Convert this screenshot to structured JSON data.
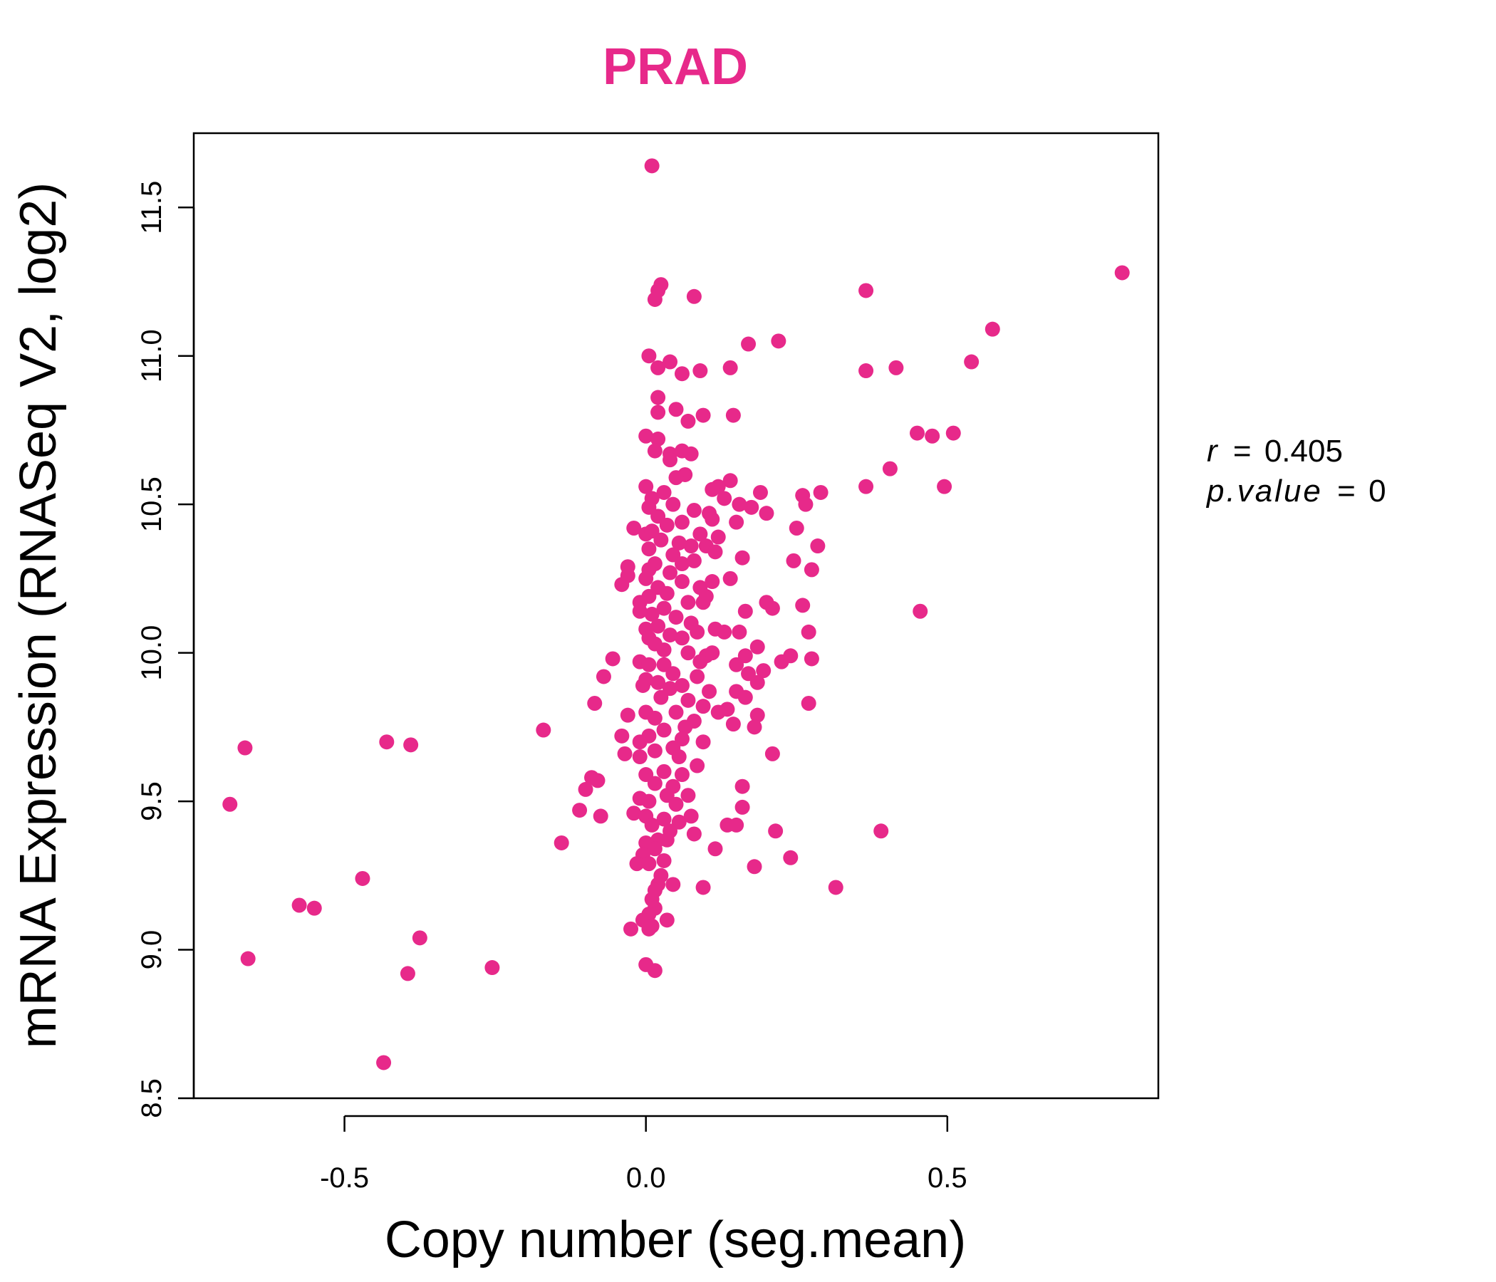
{
  "chart_data": {
    "type": "scatter",
    "title": "PRAD",
    "xlabel": "Copy number (seg.mean)",
    "ylabel": "mRNA Expression (RNASeq V2, log2)",
    "xlim": [
      -0.75,
      0.85
    ],
    "ylim": [
      8.5,
      11.75
    ],
    "x_ticks": [
      -0.5,
      0.0,
      0.5
    ],
    "x_tick_labels": [
      "-0.5",
      "0.0",
      "0.5"
    ],
    "y_ticks": [
      8.5,
      9.0,
      9.5,
      10.0,
      10.5,
      11.0,
      11.5
    ],
    "y_tick_labels": [
      "8.5",
      "9.0",
      "9.5",
      "10.0",
      "10.5",
      "11.0",
      "11.5"
    ],
    "annotation": {
      "r_label": "r",
      "r_value": "0.405",
      "p_label": "p.value",
      "p_value": "0"
    },
    "grid": false,
    "point_color": "#E7298A",
    "points": [
      [
        0.01,
        11.64
      ],
      [
        0.025,
        11.24
      ],
      [
        0.02,
        11.22
      ],
      [
        0.015,
        11.19
      ],
      [
        0.08,
        11.2
      ],
      [
        0.365,
        11.22
      ],
      [
        0.79,
        11.28
      ],
      [
        0.575,
        11.09
      ],
      [
        0.22,
        11.05
      ],
      [
        0.17,
        11.04
      ],
      [
        0.54,
        10.98
      ],
      [
        0.365,
        10.95
      ],
      [
        0.415,
        10.96
      ],
      [
        0.14,
        10.96
      ],
      [
        0.09,
        10.95
      ],
      [
        0.005,
        11.0
      ],
      [
        0.04,
        10.98
      ],
      [
        0.02,
        10.96
      ],
      [
        0.06,
        10.94
      ],
      [
        0.02,
        10.86
      ],
      [
        0.05,
        10.82
      ],
      [
        0.095,
        10.8
      ],
      [
        0.145,
        10.8
      ],
      [
        0.02,
        10.81
      ],
      [
        0.07,
        10.78
      ],
      [
        0.45,
        10.74
      ],
      [
        0.475,
        10.73
      ],
      [
        0.51,
        10.74
      ],
      [
        0.0,
        10.73
      ],
      [
        0.02,
        10.72
      ],
      [
        0.015,
        10.68
      ],
      [
        0.04,
        10.67
      ],
      [
        0.06,
        10.68
      ],
      [
        0.075,
        10.67
      ],
      [
        0.04,
        10.65
      ],
      [
        0.405,
        10.62
      ],
      [
        0.365,
        10.56
      ],
      [
        0.495,
        10.56
      ],
      [
        0.065,
        10.6
      ],
      [
        0.05,
        10.59
      ],
      [
        0.14,
        10.58
      ],
      [
        0.12,
        10.56
      ],
      [
        0.11,
        10.55
      ],
      [
        0.19,
        10.54
      ],
      [
        0.26,
        10.53
      ],
      [
        0.29,
        10.54
      ],
      [
        0.265,
        10.5
      ],
      [
        0.155,
        10.5
      ],
      [
        0.105,
        10.47
      ],
      [
        0.2,
        10.47
      ],
      [
        0.13,
        10.52
      ],
      [
        0.0,
        10.56
      ],
      [
        0.01,
        10.52
      ],
      [
        0.03,
        10.54
      ],
      [
        0.045,
        10.5
      ],
      [
        0.005,
        10.49
      ],
      [
        0.02,
        10.46
      ],
      [
        0.08,
        10.48
      ],
      [
        0.11,
        10.45
      ],
      [
        0.15,
        10.44
      ],
      [
        0.06,
        10.44
      ],
      [
        0.035,
        10.43
      ],
      [
        -0.02,
        10.42
      ],
      [
        0.0,
        10.4
      ],
      [
        0.01,
        10.41
      ],
      [
        0.025,
        10.38
      ],
      [
        0.055,
        10.37
      ],
      [
        0.09,
        10.4
      ],
      [
        0.12,
        10.39
      ],
      [
        0.25,
        10.42
      ],
      [
        0.175,
        10.49
      ],
      [
        0.005,
        10.35
      ],
      [
        0.045,
        10.33
      ],
      [
        0.075,
        10.36
      ],
      [
        0.1,
        10.36
      ],
      [
        0.115,
        10.34
      ],
      [
        0.285,
        10.36
      ],
      [
        0.16,
        10.32
      ],
      [
        0.245,
        10.31
      ],
      [
        0.015,
        10.3
      ],
      [
        0.06,
        10.3
      ],
      [
        0.08,
        10.31
      ],
      [
        -0.03,
        10.29
      ],
      [
        0.005,
        10.28
      ],
      [
        0.04,
        10.27
      ],
      [
        0.275,
        10.28
      ],
      [
        0.14,
        10.25
      ],
      [
        0.11,
        10.24
      ],
      [
        0.09,
        10.22
      ],
      [
        -0.04,
        10.23
      ],
      [
        -0.03,
        10.26
      ],
      [
        0.0,
        10.25
      ],
      [
        0.02,
        10.22
      ],
      [
        0.06,
        10.24
      ],
      [
        0.035,
        10.2
      ],
      [
        0.005,
        10.19
      ],
      [
        0.1,
        10.19
      ],
      [
        0.07,
        10.17
      ],
      [
        0.03,
        10.15
      ],
      [
        -0.01,
        10.17
      ],
      [
        0.2,
        10.17
      ],
      [
        0.21,
        10.15
      ],
      [
        0.26,
        10.16
      ],
      [
        0.095,
        10.17
      ],
      [
        0.165,
        10.14
      ],
      [
        0.455,
        10.14
      ],
      [
        0.01,
        10.13
      ],
      [
        0.05,
        10.12
      ],
      [
        -0.01,
        10.14
      ],
      [
        0.075,
        10.1
      ],
      [
        0.02,
        10.09
      ],
      [
        0.0,
        10.08
      ],
      [
        0.04,
        10.06
      ],
      [
        0.085,
        10.07
      ],
      [
        0.115,
        10.08
      ],
      [
        0.13,
        10.07
      ],
      [
        0.155,
        10.07
      ],
      [
        0.27,
        10.07
      ],
      [
        0.005,
        10.05
      ],
      [
        0.06,
        10.05
      ],
      [
        0.015,
        10.03
      ],
      [
        0.185,
        10.02
      ],
      [
        0.03,
        10.01
      ],
      [
        0.07,
        10.0
      ],
      [
        0.11,
        10.0
      ],
      [
        0.1,
        9.99
      ],
      [
        0.165,
        9.99
      ],
      [
        0.24,
        9.99
      ],
      [
        0.275,
        9.98
      ],
      [
        -0.055,
        9.98
      ],
      [
        -0.01,
        9.97
      ],
      [
        0.005,
        9.96
      ],
      [
        0.03,
        9.96
      ],
      [
        0.09,
        9.97
      ],
      [
        0.15,
        9.96
      ],
      [
        0.225,
        9.97
      ],
      [
        0.195,
        9.94
      ],
      [
        0.17,
        9.93
      ],
      [
        -0.07,
        9.92
      ],
      [
        0.045,
        9.93
      ],
      [
        0.085,
        9.92
      ],
      [
        0.0,
        9.91
      ],
      [
        0.02,
        9.9
      ],
      [
        0.06,
        9.89
      ],
      [
        0.185,
        9.9
      ],
      [
        -0.005,
        9.89
      ],
      [
        0.04,
        9.88
      ],
      [
        0.15,
        9.87
      ],
      [
        0.105,
        9.87
      ],
      [
        0.165,
        9.85
      ],
      [
        0.025,
        9.85
      ],
      [
        0.07,
        9.84
      ],
      [
        -0.085,
        9.83
      ],
      [
        0.27,
        9.83
      ],
      [
        0.095,
        9.82
      ],
      [
        0.135,
        9.81
      ],
      [
        0.05,
        9.8
      ],
      [
        0.0,
        9.8
      ],
      [
        -0.03,
        9.79
      ],
      [
        0.12,
        9.8
      ],
      [
        0.185,
        9.79
      ],
      [
        0.015,
        9.78
      ],
      [
        0.08,
        9.77
      ],
      [
        0.145,
        9.76
      ],
      [
        0.065,
        9.75
      ],
      [
        -0.17,
        9.74
      ],
      [
        0.18,
        9.75
      ],
      [
        0.03,
        9.74
      ],
      [
        0.005,
        9.72
      ],
      [
        -0.04,
        9.72
      ],
      [
        0.06,
        9.71
      ],
      [
        0.095,
        9.7
      ],
      [
        -0.01,
        9.7
      ],
      [
        0.045,
        9.68
      ],
      [
        -0.665,
        9.68
      ],
      [
        -0.43,
        9.7
      ],
      [
        -0.39,
        9.69
      ],
      [
        0.015,
        9.67
      ],
      [
        -0.035,
        9.66
      ],
      [
        -0.01,
        9.65
      ],
      [
        0.055,
        9.65
      ],
      [
        0.21,
        9.66
      ],
      [
        0.085,
        9.62
      ],
      [
        0.03,
        9.6
      ],
      [
        0.0,
        9.59
      ],
      [
        0.06,
        9.59
      ],
      [
        -0.09,
        9.58
      ],
      [
        -0.08,
        9.57
      ],
      [
        0.015,
        9.56
      ],
      [
        0.045,
        9.55
      ],
      [
        -0.1,
        9.54
      ],
      [
        0.16,
        9.55
      ],
      [
        0.07,
        9.52
      ],
      [
        0.035,
        9.52
      ],
      [
        -0.01,
        9.51
      ],
      [
        0.005,
        9.5
      ],
      [
        0.05,
        9.49
      ],
      [
        0.16,
        9.48
      ],
      [
        -0.69,
        9.49
      ],
      [
        -0.11,
        9.47
      ],
      [
        -0.02,
        9.46
      ],
      [
        0.0,
        9.45
      ],
      [
        -0.075,
        9.45
      ],
      [
        0.03,
        9.44
      ],
      [
        0.055,
        9.43
      ],
      [
        0.075,
        9.45
      ],
      [
        0.01,
        9.42
      ],
      [
        0.135,
        9.42
      ],
      [
        0.15,
        9.42
      ],
      [
        0.04,
        9.4
      ],
      [
        0.215,
        9.4
      ],
      [
        0.39,
        9.4
      ],
      [
        0.08,
        9.39
      ],
      [
        0.02,
        9.37
      ],
      [
        0.035,
        9.37
      ],
      [
        -0.14,
        9.36
      ],
      [
        0.0,
        9.36
      ],
      [
        0.015,
        9.34
      ],
      [
        0.115,
        9.34
      ],
      [
        -0.005,
        9.32
      ],
      [
        0.24,
        9.31
      ],
      [
        0.03,
        9.3
      ],
      [
        -0.015,
        9.29
      ],
      [
        0.005,
        9.29
      ],
      [
        0.18,
        9.28
      ],
      [
        -0.47,
        9.24
      ],
      [
        0.025,
        9.25
      ],
      [
        0.02,
        9.22
      ],
      [
        0.045,
        9.22
      ],
      [
        0.095,
        9.21
      ],
      [
        0.315,
        9.21
      ],
      [
        0.015,
        9.2
      ],
      [
        0.01,
        9.17
      ],
      [
        -0.575,
        9.15
      ],
      [
        -0.55,
        9.14
      ],
      [
        0.015,
        9.14
      ],
      [
        0.005,
        9.12
      ],
      [
        0.035,
        9.1
      ],
      [
        -0.005,
        9.1
      ],
      [
        0.01,
        9.08
      ],
      [
        -0.025,
        9.07
      ],
      [
        0.005,
        9.07
      ],
      [
        -0.375,
        9.04
      ],
      [
        -0.66,
        8.97
      ],
      [
        -0.255,
        8.94
      ],
      [
        0.0,
        8.95
      ],
      [
        0.015,
        8.93
      ],
      [
        -0.395,
        8.92
      ],
      [
        -0.435,
        8.62
      ]
    ]
  }
}
